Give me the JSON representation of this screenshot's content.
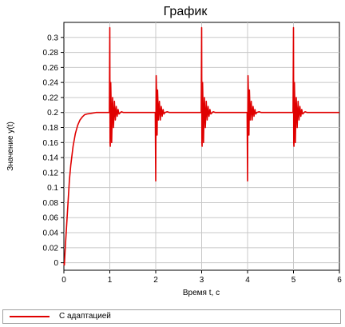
{
  "chart_data": {
    "type": "line",
    "title": "График",
    "xlabel": "Время t, c",
    "ylabel": "Значение y(t)",
    "xlim": [
      0,
      6
    ],
    "ylim": [
      -0.01,
      0.32
    ],
    "x_ticks": [
      "0",
      "1",
      "2",
      "3",
      "4",
      "5",
      "6"
    ],
    "y_ticks": [
      "0",
      "0.02",
      "0.04",
      "0.06",
      "0.08",
      "0.1",
      "0.12",
      "0.14",
      "0.16",
      "0.18",
      "0.2",
      "0.22",
      "0.24",
      "0.26",
      "0.28",
      "0.3"
    ],
    "grid": true,
    "legend": "bottom",
    "series": [
      {
        "name": "С адаптацией",
        "color": "#e00000",
        "x": [
          0,
          0.01,
          0.03,
          0.05,
          0.08,
          0.1,
          0.12,
          0.15,
          0.2,
          0.25,
          0.3,
          0.35,
          0.4,
          0.45,
          0.5,
          0.6,
          0.7,
          0.8,
          0.9,
          0.98,
          0.99,
          1.0,
          1.005,
          1.01,
          1.02,
          1.03,
          1.04,
          1.06,
          1.08,
          1.1,
          1.12,
          1.14,
          1.16,
          1.18,
          1.2,
          1.25,
          1.3,
          1.4,
          1.5,
          1.6,
          1.7,
          1.8,
          1.9,
          1.98,
          1.99,
          2.0,
          2.005,
          2.01,
          2.02,
          2.03,
          2.04,
          2.06,
          2.08,
          2.1,
          2.12,
          2.14,
          2.16,
          2.18,
          2.2,
          2.25,
          2.3,
          2.4,
          2.5,
          2.6,
          2.7,
          2.8,
          2.9,
          2.98,
          2.99,
          3.0,
          3.005,
          3.01,
          3.02,
          3.03,
          3.04,
          3.06,
          3.08,
          3.1,
          3.12,
          3.14,
          3.16,
          3.18,
          3.2,
          3.25,
          3.3,
          3.4,
          3.5,
          3.6,
          3.7,
          3.8,
          3.9,
          3.98,
          3.99,
          4.0,
          4.005,
          4.01,
          4.02,
          4.03,
          4.04,
          4.06,
          4.08,
          4.1,
          4.12,
          4.14,
          4.16,
          4.18,
          4.2,
          4.25,
          4.3,
          4.4,
          4.5,
          4.6,
          4.7,
          4.8,
          4.9,
          4.98,
          4.99,
          5.0,
          5.005,
          5.01,
          5.02,
          5.03,
          5.04,
          5.06,
          5.08,
          5.1,
          5.12,
          5.14,
          5.16,
          5.18,
          5.2,
          5.25,
          5.3,
          5.4,
          5.5,
          5.6,
          5.7,
          5.8,
          5.9,
          6.0
        ],
        "y": [
          0,
          -0.003,
          0.02,
          0.04,
          0.07,
          0.09,
          0.11,
          0.13,
          0.155,
          0.172,
          0.183,
          0.19,
          0.194,
          0.197,
          0.198,
          0.199,
          0.2,
          0.2,
          0.2,
          0.2,
          0.2,
          0.313,
          0.16,
          0.155,
          0.24,
          0.21,
          0.16,
          0.22,
          0.18,
          0.215,
          0.19,
          0.208,
          0.195,
          0.204,
          0.198,
          0.201,
          0.2,
          0.2,
          0.2,
          0.2,
          0.2,
          0.2,
          0.2,
          0.2,
          0.2,
          0.109,
          0.2,
          0.249,
          0.22,
          0.17,
          0.23,
          0.19,
          0.215,
          0.19,
          0.208,
          0.195,
          0.204,
          0.198,
          0.2,
          0.201,
          0.2,
          0.2,
          0.2,
          0.2,
          0.2,
          0.2,
          0.2,
          0.2,
          0.2,
          0.313,
          0.16,
          0.155,
          0.24,
          0.21,
          0.16,
          0.22,
          0.18,
          0.215,
          0.19,
          0.208,
          0.195,
          0.204,
          0.198,
          0.201,
          0.2,
          0.2,
          0.2,
          0.2,
          0.2,
          0.2,
          0.2,
          0.2,
          0.2,
          0.109,
          0.2,
          0.249,
          0.22,
          0.17,
          0.23,
          0.19,
          0.215,
          0.19,
          0.208,
          0.195,
          0.204,
          0.198,
          0.2,
          0.201,
          0.2,
          0.2,
          0.2,
          0.2,
          0.2,
          0.2,
          0.2,
          0.2,
          0.2,
          0.313,
          0.16,
          0.155,
          0.24,
          0.21,
          0.16,
          0.22,
          0.18,
          0.215,
          0.19,
          0.208,
          0.195,
          0.204,
          0.198,
          0.201,
          0.2,
          0.2,
          0.2,
          0.2,
          0.2,
          0.2,
          0.2,
          0.2
        ]
      }
    ]
  }
}
